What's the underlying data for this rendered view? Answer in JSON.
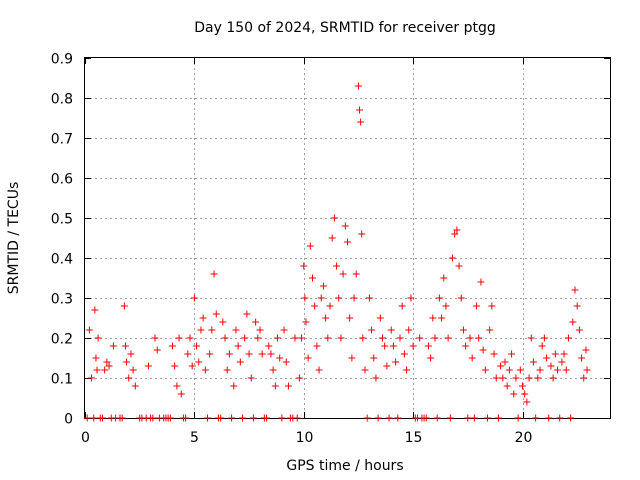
{
  "chart_data": {
    "type": "scatter",
    "title": "Day 150 of 2024, SRMTID for receiver ptgg",
    "xlabel": "GPS time / hours",
    "ylabel": "SRMTID / TECUs",
    "xlim": [
      0,
      24
    ],
    "ylim": [
      0,
      0.9
    ],
    "xticks": [
      0,
      5,
      10,
      15,
      20
    ],
    "xtick_labels": [
      "0",
      "5",
      "10",
      "15",
      "20"
    ],
    "yticks": [
      0,
      0.1,
      0.2,
      0.3,
      0.4,
      0.5,
      0.6,
      0.7,
      0.8,
      0.9
    ],
    "ytick_labels": [
      "0",
      "0.1",
      "0.2",
      "0.3",
      "0.4",
      "0.5",
      "0.6",
      "0.7",
      "0.8",
      "0.9"
    ],
    "grid": true,
    "marker": "+",
    "color": "#ff0000",
    "series": [
      {
        "name": "SRMTID",
        "points": [
          [
            0.1,
            0.0
          ],
          [
            0.2,
            0.22
          ],
          [
            0.3,
            0.1
          ],
          [
            0.4,
            0.0
          ],
          [
            0.45,
            0.27
          ],
          [
            0.5,
            0.15
          ],
          [
            0.55,
            0.12
          ],
          [
            0.6,
            0.2
          ],
          [
            0.7,
            0.0
          ],
          [
            0.8,
            0.0
          ],
          [
            0.9,
            0.12
          ],
          [
            1.0,
            0.14
          ],
          [
            1.1,
            0.13
          ],
          [
            1.2,
            0.0
          ],
          [
            1.3,
            0.18
          ],
          [
            1.4,
            0.0
          ],
          [
            1.6,
            0.0
          ],
          [
            1.7,
            0.0
          ],
          [
            1.8,
            0.28
          ],
          [
            1.85,
            0.18
          ],
          [
            1.9,
            0.14
          ],
          [
            2.0,
            0.1
          ],
          [
            2.1,
            0.16
          ],
          [
            2.2,
            0.12
          ],
          [
            2.3,
            0.08
          ],
          [
            2.5,
            0.0
          ],
          [
            2.6,
            0.0
          ],
          [
            2.8,
            0.0
          ],
          [
            2.9,
            0.13
          ],
          [
            3.0,
            0.0
          ],
          [
            3.1,
            0.0
          ],
          [
            3.2,
            0.2
          ],
          [
            3.3,
            0.17
          ],
          [
            3.4,
            0.0
          ],
          [
            3.6,
            0.0
          ],
          [
            3.7,
            0.0
          ],
          [
            3.8,
            0.0
          ],
          [
            3.9,
            0.0
          ],
          [
            4.0,
            0.18
          ],
          [
            4.1,
            0.13
          ],
          [
            4.2,
            0.08
          ],
          [
            4.3,
            0.2
          ],
          [
            4.4,
            0.06
          ],
          [
            4.5,
            0.0
          ],
          [
            4.6,
            0.0
          ],
          [
            4.7,
            0.16
          ],
          [
            4.8,
            0.2
          ],
          [
            4.9,
            0.13
          ],
          [
            5.0,
            0.3
          ],
          [
            5.1,
            0.18
          ],
          [
            5.2,
            0.14
          ],
          [
            5.3,
            0.22
          ],
          [
            5.4,
            0.25
          ],
          [
            5.5,
            0.12
          ],
          [
            5.6,
            0.0
          ],
          [
            5.7,
            0.16
          ],
          [
            5.8,
            0.22
          ],
          [
            5.9,
            0.36
          ],
          [
            6.0,
            0.26
          ],
          [
            6.1,
            0.0
          ],
          [
            6.2,
            0.0
          ],
          [
            6.3,
            0.24
          ],
          [
            6.4,
            0.2
          ],
          [
            6.5,
            0.12
          ],
          [
            6.6,
            0.16
          ],
          [
            6.7,
            0.0
          ],
          [
            6.8,
            0.08
          ],
          [
            6.9,
            0.22
          ],
          [
            7.0,
            0.18
          ],
          [
            7.1,
            0.14
          ],
          [
            7.2,
            0.0
          ],
          [
            7.3,
            0.2
          ],
          [
            7.4,
            0.26
          ],
          [
            7.5,
            0.16
          ],
          [
            7.6,
            0.1
          ],
          [
            7.7,
            0.0
          ],
          [
            7.8,
            0.24
          ],
          [
            7.9,
            0.2
          ],
          [
            8.0,
            0.22
          ],
          [
            8.1,
            0.16
          ],
          [
            8.2,
            0.0
          ],
          [
            8.3,
            0.0
          ],
          [
            8.4,
            0.18
          ],
          [
            8.5,
            0.16
          ],
          [
            8.6,
            0.12
          ],
          [
            8.7,
            0.08
          ],
          [
            8.8,
            0.2
          ],
          [
            8.9,
            0.15
          ],
          [
            9.0,
            0.0
          ],
          [
            9.1,
            0.22
          ],
          [
            9.2,
            0.14
          ],
          [
            9.3,
            0.08
          ],
          [
            9.4,
            0.0
          ],
          [
            9.5,
            0.0
          ],
          [
            9.6,
            0.2
          ],
          [
            9.7,
            0.0
          ],
          [
            9.8,
            0.1
          ],
          [
            9.9,
            0.2
          ],
          [
            10.0,
            0.38
          ],
          [
            10.05,
            0.3
          ],
          [
            10.1,
            0.24
          ],
          [
            10.2,
            0.15
          ],
          [
            10.3,
            0.43
          ],
          [
            10.4,
            0.35
          ],
          [
            10.5,
            0.28
          ],
          [
            10.6,
            0.18
          ],
          [
            10.7,
            0.12
          ],
          [
            10.8,
            0.3
          ],
          [
            10.9,
            0.33
          ],
          [
            11.0,
            0.25
          ],
          [
            11.1,
            0.2
          ],
          [
            11.2,
            0.28
          ],
          [
            11.3,
            0.45
          ],
          [
            11.4,
            0.5
          ],
          [
            11.5,
            0.38
          ],
          [
            11.6,
            0.3
          ],
          [
            11.7,
            0.2
          ],
          [
            11.8,
            0.36
          ],
          [
            11.9,
            0.48
          ],
          [
            12.0,
            0.44
          ],
          [
            12.1,
            0.25
          ],
          [
            12.2,
            0.15
          ],
          [
            12.3,
            0.3
          ],
          [
            12.4,
            0.36
          ],
          [
            12.5,
            0.83
          ],
          [
            12.55,
            0.77
          ],
          [
            12.6,
            0.74
          ],
          [
            12.65,
            0.46
          ],
          [
            12.7,
            0.2
          ],
          [
            12.8,
            0.12
          ],
          [
            12.9,
            0.0
          ],
          [
            13.0,
            0.3
          ],
          [
            13.1,
            0.22
          ],
          [
            13.2,
            0.15
          ],
          [
            13.3,
            0.1
          ],
          [
            13.4,
            0.0
          ],
          [
            13.5,
            0.25
          ],
          [
            13.6,
            0.2
          ],
          [
            13.7,
            0.18
          ],
          [
            13.8,
            0.13
          ],
          [
            13.9,
            0.0
          ],
          [
            14.0,
            0.22
          ],
          [
            14.1,
            0.18
          ],
          [
            14.2,
            0.14
          ],
          [
            14.3,
            0.0
          ],
          [
            14.4,
            0.2
          ],
          [
            14.5,
            0.28
          ],
          [
            14.6,
            0.16
          ],
          [
            14.7,
            0.12
          ],
          [
            14.8,
            0.22
          ],
          [
            14.9,
            0.3
          ],
          [
            15.0,
            0.18
          ],
          [
            15.1,
            0.0
          ],
          [
            15.2,
            0.0
          ],
          [
            15.3,
            0.2
          ],
          [
            15.4,
            0.0
          ],
          [
            15.5,
            0.0
          ],
          [
            15.6,
            0.0
          ],
          [
            15.7,
            0.18
          ],
          [
            15.8,
            0.15
          ],
          [
            15.9,
            0.25
          ],
          [
            16.0,
            0.2
          ],
          [
            16.1,
            0.0
          ],
          [
            16.2,
            0.3
          ],
          [
            16.3,
            0.25
          ],
          [
            16.4,
            0.35
          ],
          [
            16.5,
            0.28
          ],
          [
            16.6,
            0.2
          ],
          [
            16.7,
            0.0
          ],
          [
            16.8,
            0.4
          ],
          [
            16.9,
            0.46
          ],
          [
            17.0,
            0.47
          ],
          [
            17.1,
            0.38
          ],
          [
            17.2,
            0.3
          ],
          [
            17.3,
            0.22
          ],
          [
            17.4,
            0.18
          ],
          [
            17.5,
            0.0
          ],
          [
            17.6,
            0.2
          ],
          [
            17.7,
            0.15
          ],
          [
            17.8,
            0.0
          ],
          [
            17.9,
            0.28
          ],
          [
            18.0,
            0.2
          ],
          [
            18.1,
            0.34
          ],
          [
            18.2,
            0.17
          ],
          [
            18.3,
            0.12
          ],
          [
            18.4,
            0.0
          ],
          [
            18.5,
            0.22
          ],
          [
            18.6,
            0.28
          ],
          [
            18.7,
            0.16
          ],
          [
            18.8,
            0.1
          ],
          [
            18.9,
            0.0
          ],
          [
            19.0,
            0.13
          ],
          [
            19.1,
            0.1
          ],
          [
            19.2,
            0.14
          ],
          [
            19.3,
            0.08
          ],
          [
            19.4,
            0.12
          ],
          [
            19.5,
            0.16
          ],
          [
            19.6,
            0.06
          ],
          [
            19.7,
            0.1
          ],
          [
            19.8,
            0.0
          ],
          [
            19.9,
            0.12
          ],
          [
            20.0,
            0.08
          ],
          [
            20.1,
            0.06
          ],
          [
            20.2,
            0.04
          ],
          [
            20.3,
            0.1
          ],
          [
            20.4,
            0.2
          ],
          [
            20.5,
            0.14
          ],
          [
            20.6,
            0.0
          ],
          [
            20.7,
            0.1
          ],
          [
            20.8,
            0.12
          ],
          [
            20.9,
            0.18
          ],
          [
            21.0,
            0.2
          ],
          [
            21.1,
            0.15
          ],
          [
            21.2,
            0.0
          ],
          [
            21.3,
            0.13
          ],
          [
            21.4,
            0.1
          ],
          [
            21.5,
            0.16
          ],
          [
            21.6,
            0.12
          ],
          [
            21.7,
            0.0
          ],
          [
            21.8,
            0.14
          ],
          [
            21.9,
            0.16
          ],
          [
            22.0,
            0.12
          ],
          [
            22.1,
            0.2
          ],
          [
            22.2,
            0.0
          ],
          [
            22.3,
            0.24
          ],
          [
            22.4,
            0.32
          ],
          [
            22.5,
            0.28
          ],
          [
            22.6,
            0.22
          ],
          [
            22.7,
            0.15
          ],
          [
            22.8,
            0.1
          ],
          [
            22.9,
            0.17
          ],
          [
            22.95,
            0.12
          ]
        ]
      }
    ]
  }
}
